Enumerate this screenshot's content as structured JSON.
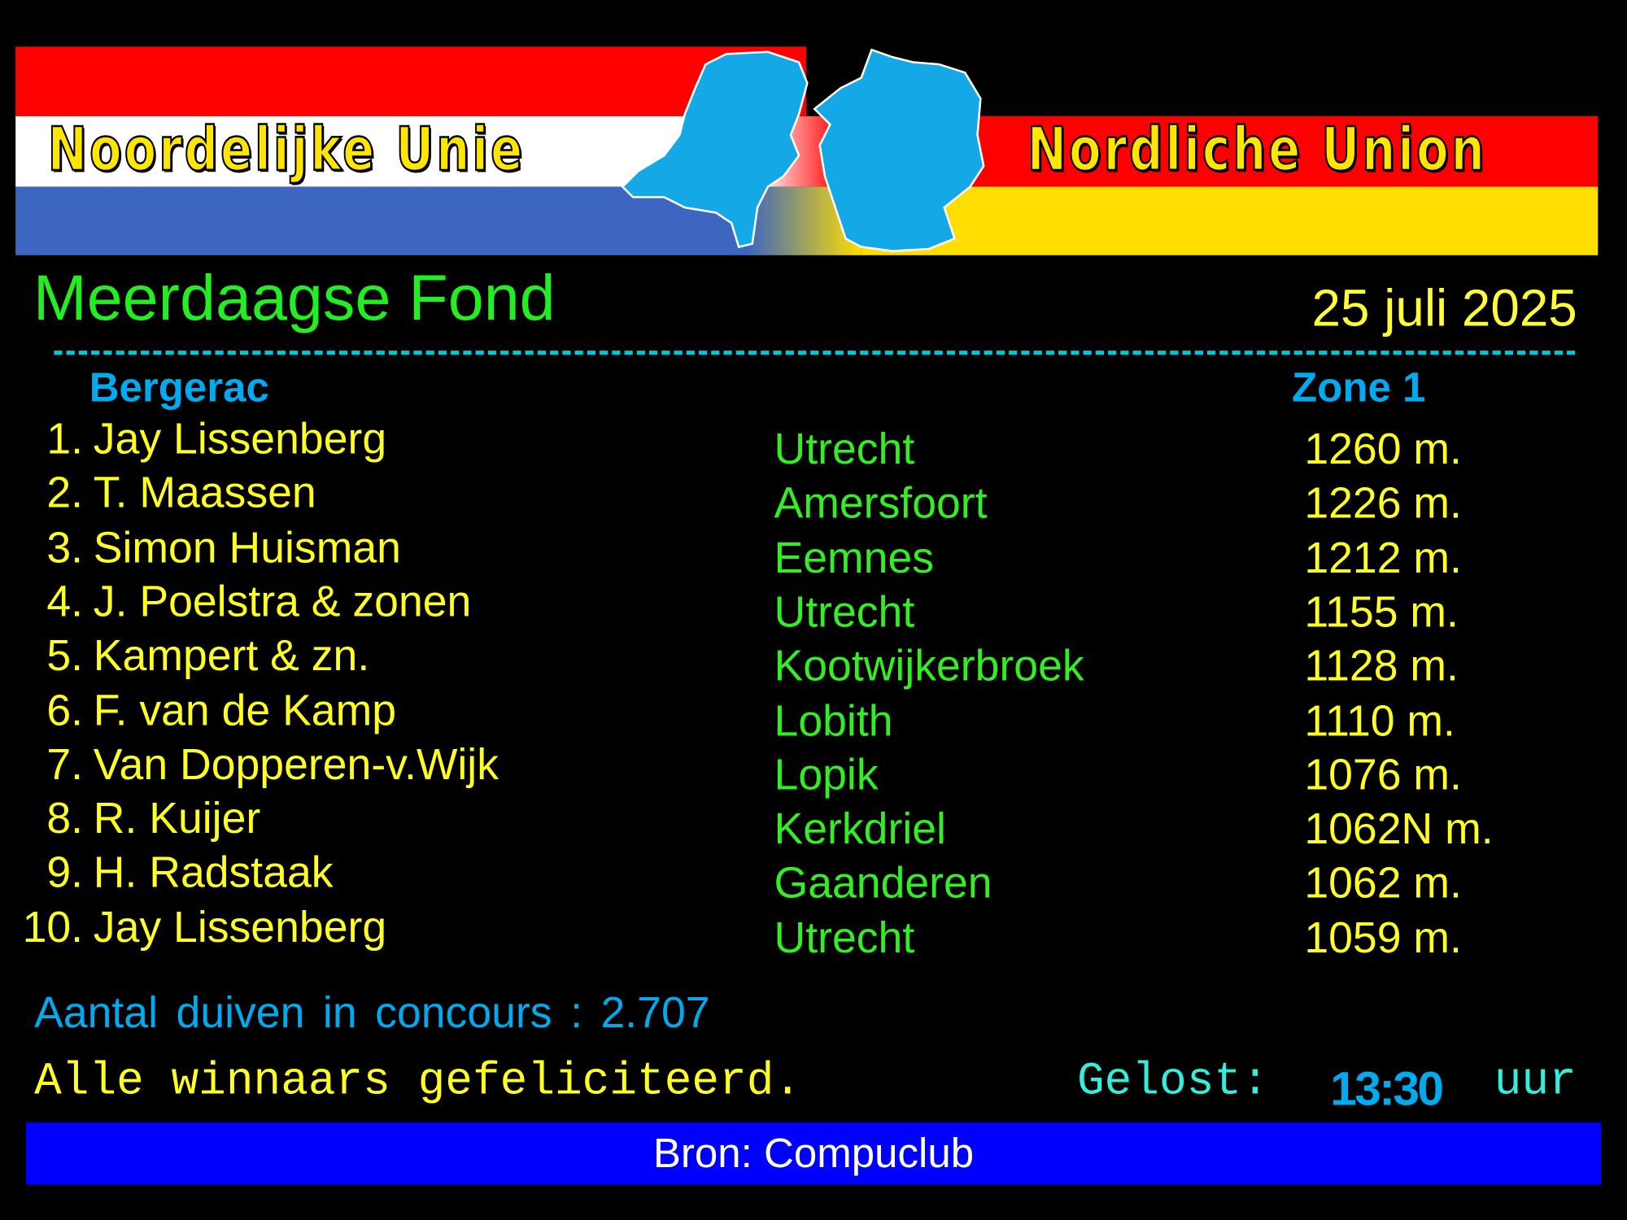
{
  "banner": {
    "left_title": "Noordelijke Unie",
    "right_title": "Nordliche Union",
    "logo_icon": "nl-de-flags-with-maps"
  },
  "header": {
    "title": "Meerdaagse Fond",
    "date": "25 juli 2025"
  },
  "race": {
    "location": "Bergerac",
    "zone": "Zone 1"
  },
  "results": [
    {
      "rank": "1.",
      "name": "Jay Lissenberg",
      "city": "Utrecht",
      "distance": "1260 m."
    },
    {
      "rank": "2.",
      "name": "T. Maassen",
      "city": "Amersfoort",
      "distance": "1226 m."
    },
    {
      "rank": "3.",
      "name": "Simon Huisman",
      "city": "Eemnes",
      "distance": "1212 m."
    },
    {
      "rank": "4.",
      "name": "J. Poelstra & zonen",
      "city": "Utrecht",
      "distance": "1155 m."
    },
    {
      "rank": "5.",
      "name": "Kampert & zn.",
      "city": "Kootwijkerbroek",
      "distance": "1128 m."
    },
    {
      "rank": "6.",
      "name": "F. van de Kamp",
      "city": "Lobith",
      "distance": "1110 m."
    },
    {
      "rank": "7.",
      "name": "Van Dopperen-v.Wijk",
      "city": "Lopik",
      "distance": "1076 m."
    },
    {
      "rank": "8.",
      "name": "R. Kuijer",
      "city": "Kerkdriel",
      "distance": "1062N m."
    },
    {
      "rank": "9.",
      "name": "H. Radstaak",
      "city": "Gaanderen",
      "distance": "1062 m."
    },
    {
      "rank": "10.",
      "name": "Jay Lissenberg",
      "city": "Utrecht",
      "distance": "1059 m."
    }
  ],
  "summary": {
    "count_label": "Aantal duiven in concours :",
    "count_value": "2.707",
    "congrats": "Alle winnaars gefeliciteerd.",
    "release_label": "Gelost:",
    "release_time": "13:30",
    "release_unit": "uur"
  },
  "footer": {
    "source": "Bron: Compuclub"
  },
  "colors": {
    "title": "#22ee22",
    "names": "#ffff22",
    "cities": "#33ee22",
    "headings": "#00aaee",
    "footer_bg": "#0000ff"
  }
}
